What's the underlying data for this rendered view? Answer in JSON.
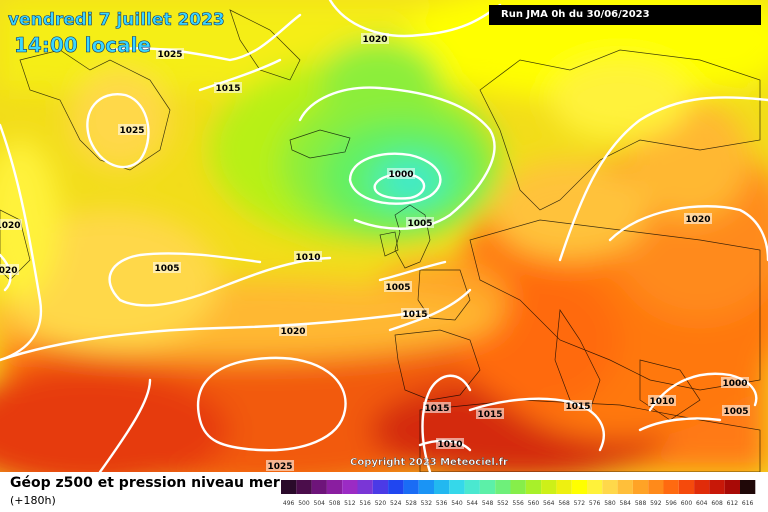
{
  "header": {
    "date": "vendredi 7 juillet 2023",
    "time": "14:00 locale"
  },
  "run_info": "Run JMA 0h du 30/06/2023",
  "copyright": "Copyright 2023 Meteociel.fr",
  "footer": {
    "title": "Géop z500 et pression niveau mer",
    "subtitle": "(+180h)"
  },
  "scale": {
    "ticks": [
      "496",
      "500",
      "504",
      "508",
      "512",
      "516",
      "520",
      "524",
      "528",
      "532",
      "536",
      "540",
      "544",
      "548",
      "552",
      "556",
      "560",
      "564",
      "568",
      "572",
      "576",
      "580",
      "584",
      "588",
      "592",
      "596",
      "600",
      "604",
      "608",
      "612",
      "616"
    ],
    "colors": [
      "#2a0a2a",
      "#4b0d4b",
      "#6e147a",
      "#8a1ea0",
      "#9b2bc4",
      "#7a36d6",
      "#4b3ae6",
      "#2046f0",
      "#1a6cf5",
      "#1a94f5",
      "#22b8f0",
      "#35d8ea",
      "#4ae8d0",
      "#5cf0a8",
      "#6ef07a",
      "#86ee4a",
      "#a8f02a",
      "#cdf018",
      "#eef010",
      "#ffff00",
      "#fff23a",
      "#ffd84a",
      "#ffbf3a",
      "#ffa326",
      "#ff8a1a",
      "#ff6a10",
      "#f54a0c",
      "#e02c0a",
      "#c81808",
      "#a80a06",
      "#200808"
    ]
  },
  "isobars": [
    {
      "label": "1025"
    },
    {
      "label": "1020"
    },
    {
      "label": "1015"
    },
    {
      "label": "1025"
    },
    {
      "label": "1000"
    },
    {
      "label": "1005"
    },
    {
      "label": "1020"
    },
    {
      "label": "1020"
    },
    {
      "label": "1005"
    },
    {
      "label": "1010"
    },
    {
      "label": "1005"
    },
    {
      "label": "1015"
    },
    {
      "label": "1020"
    },
    {
      "label": "1015"
    },
    {
      "label": "1015"
    },
    {
      "label": "1015"
    },
    {
      "label": "1010"
    },
    {
      "label": "1000"
    },
    {
      "label": "1005"
    },
    {
      "label": "1010"
    },
    {
      "label": "1025"
    },
    {
      "label": "1020"
    }
  ]
}
